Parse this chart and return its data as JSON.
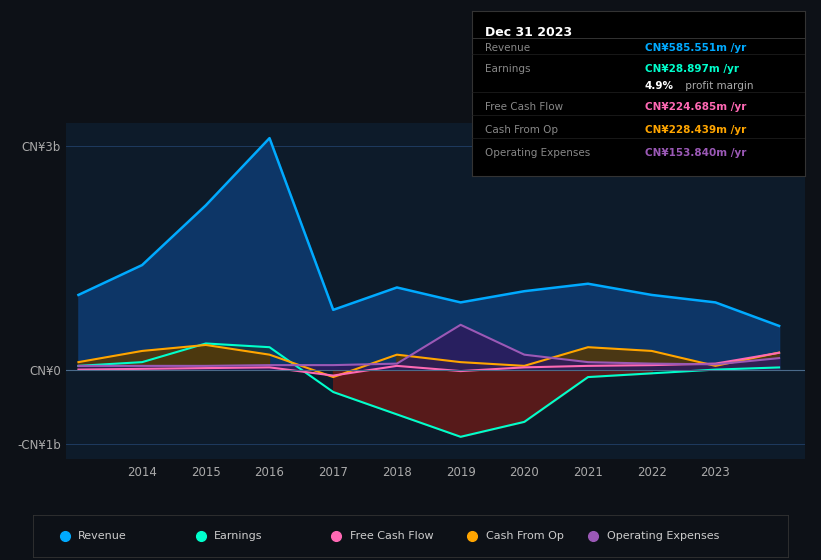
{
  "bg_color": "#0d1117",
  "chart_bg": "#0d1b2a",
  "grid_color": "#1e3a5f",
  "years": [
    2013,
    2014,
    2015,
    2016,
    2017,
    2018,
    2019,
    2020,
    2021,
    2022,
    2023,
    2024
  ],
  "revenue": [
    1000,
    1400,
    2200,
    3100,
    800,
    1100,
    900,
    1050,
    1150,
    1000,
    900,
    585
  ],
  "earnings": [
    50,
    100,
    350,
    300,
    -300,
    -600,
    -900,
    -700,
    -100,
    -50,
    0,
    29
  ],
  "free_cash_flow": [
    0,
    10,
    20,
    30,
    -80,
    50,
    -20,
    30,
    50,
    60,
    80,
    225
  ],
  "cash_from_op": [
    100,
    250,
    330,
    200,
    -100,
    200,
    100,
    50,
    300,
    250,
    50,
    228
  ],
  "operating_expenses": [
    50,
    50,
    50,
    60,
    60,
    80,
    600,
    200,
    100,
    80,
    70,
    154
  ],
  "revenue_color": "#00aaff",
  "revenue_fill": "#0d3a6e",
  "earnings_color": "#00ffcc",
  "earnings_fill_neg": "#5c1a1a",
  "earnings_fill_pos": "#1a3a3a",
  "fcf_color": "#ff69b4",
  "cashop_color": "#ffa500",
  "cashop_fill_pos": "#5a3800",
  "cashop_fill_neg": "#5a2000",
  "opex_color": "#9b59b6",
  "opex_fill": "#2d1b5e",
  "ylim_min": -1200,
  "ylim_max": 3300,
  "yticks": [
    -1000,
    0,
    3000
  ],
  "ytick_labels": [
    "-CN¥1b",
    "CN¥0",
    "CN¥3b"
  ],
  "xtick_labels": [
    "2014",
    "2015",
    "2016",
    "2017",
    "2018",
    "2019",
    "2020",
    "2021",
    "2022",
    "2023"
  ],
  "tooltip_date": "Dec 31 2023",
  "tooltip_rows": [
    [
      "Revenue",
      "CN¥585.551m /yr",
      "#00aaff"
    ],
    [
      "Earnings",
      "CN¥28.897m /yr",
      "#00ffcc"
    ],
    [
      "",
      "4.9% profit margin",
      "#ffffff"
    ],
    [
      "Free Cash Flow",
      "CN¥224.685m /yr",
      "#ff69b4"
    ],
    [
      "Cash From Op",
      "CN¥228.439m /yr",
      "#ffa500"
    ],
    [
      "Operating Expenses",
      "CN¥153.840m /yr",
      "#9b59b6"
    ]
  ],
  "legend_items": [
    [
      "Revenue",
      "#00aaff"
    ],
    [
      "Earnings",
      "#00ffcc"
    ],
    [
      "Free Cash Flow",
      "#ff69b4"
    ],
    [
      "Cash From Op",
      "#ffa500"
    ],
    [
      "Operating Expenses",
      "#9b59b6"
    ]
  ]
}
